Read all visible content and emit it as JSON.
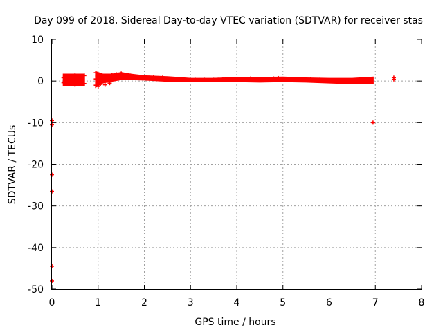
{
  "chart_data": {
    "type": "scatter",
    "title": "Day 099 of 2018, Sidereal Day-to-day VTEC variation (SDTVAR) for receiver stas",
    "xlabel": "GPS time / hours",
    "ylabel": "SDTVAR / TECUs",
    "xlim": [
      0,
      8
    ],
    "ylim": [
      -50,
      10
    ],
    "x_ticks": [
      "0",
      "1",
      "2",
      "3",
      "4",
      "5",
      "6",
      "7",
      "8"
    ],
    "y_ticks": [
      "10",
      "0",
      "-10",
      "-20",
      "-30",
      "-40",
      "-50"
    ],
    "grid": true,
    "marker_color": "#ff0000",
    "series": [
      {
        "name": "SDTVAR",
        "points": [
          [
            0.0,
            -9.5
          ],
          [
            0.0,
            -10.5
          ],
          [
            0.0,
            -22.5
          ],
          [
            0.0,
            -26.5
          ],
          [
            0.0,
            -44.5
          ],
          [
            0.0,
            -48.0
          ],
          [
            0.25,
            0.8
          ],
          [
            0.25,
            -0.4
          ],
          [
            0.3,
            1.0
          ],
          [
            0.3,
            -0.6
          ],
          [
            0.35,
            0.5
          ],
          [
            0.35,
            -0.3
          ],
          [
            0.4,
            1.2
          ],
          [
            0.4,
            -0.8
          ],
          [
            0.45,
            0.6
          ],
          [
            0.45,
            -0.2
          ],
          [
            0.5,
            1.4
          ],
          [
            0.5,
            -0.9
          ],
          [
            0.55,
            0.7
          ],
          [
            0.55,
            -0.5
          ],
          [
            0.6,
            1.1
          ],
          [
            0.6,
            -0.7
          ],
          [
            0.65,
            0.9
          ],
          [
            0.65,
            -0.4
          ],
          [
            0.7,
            1.3
          ],
          [
            0.7,
            -0.6
          ],
          [
            0.95,
            2.0
          ],
          [
            0.95,
            0.5
          ],
          [
            0.95,
            -1.0
          ],
          [
            0.98,
            1.2
          ],
          [
            1.0,
            -1.3
          ],
          [
            1.05,
            1.5
          ],
          [
            1.05,
            -0.8
          ],
          [
            1.1,
            1.0
          ],
          [
            1.15,
            -0.9
          ],
          [
            1.2,
            1.2
          ],
          [
            1.25,
            -0.5
          ],
          [
            1.3,
            1.4
          ],
          [
            1.4,
            1.6
          ],
          [
            1.5,
            1.8
          ],
          [
            1.6,
            1.5
          ],
          [
            1.7,
            1.3
          ],
          [
            1.8,
            1.1
          ],
          [
            1.9,
            1.0
          ],
          [
            2.0,
            0.9
          ],
          [
            2.1,
            0.8
          ],
          [
            2.2,
            1.0
          ],
          [
            2.3,
            0.7
          ],
          [
            2.4,
            0.9
          ],
          [
            2.5,
            0.6
          ],
          [
            2.6,
            0.5
          ],
          [
            2.7,
            0.5
          ],
          [
            2.8,
            0.4
          ],
          [
            2.9,
            0.3
          ],
          [
            3.0,
            0.2
          ],
          [
            3.1,
            0.3
          ],
          [
            3.2,
            0.2
          ],
          [
            3.3,
            0.3
          ],
          [
            3.4,
            0.2
          ],
          [
            3.5,
            0.3
          ],
          [
            3.6,
            0.3
          ],
          [
            3.7,
            0.4
          ],
          [
            3.8,
            0.3
          ],
          [
            3.9,
            0.4
          ],
          [
            4.0,
            0.3
          ],
          [
            4.1,
            0.5
          ],
          [
            4.2,
            0.4
          ],
          [
            4.3,
            0.6
          ],
          [
            4.4,
            0.4
          ],
          [
            4.5,
            0.3
          ],
          [
            4.6,
            0.5
          ],
          [
            4.7,
            0.4
          ],
          [
            4.8,
            0.6
          ],
          [
            4.9,
            0.7
          ],
          [
            5.0,
            0.5
          ],
          [
            5.1,
            0.4
          ],
          [
            5.2,
            0.3
          ],
          [
            5.3,
            0.5
          ],
          [
            5.4,
            0.4
          ],
          [
            5.5,
            0.3
          ],
          [
            5.6,
            0.4
          ],
          [
            5.7,
            0.2
          ],
          [
            5.8,
            0.3
          ],
          [
            5.9,
            0.1
          ],
          [
            6.0,
            0.2
          ],
          [
            6.1,
            0.0
          ],
          [
            6.2,
            0.1
          ],
          [
            6.3,
            -0.1
          ],
          [
            6.4,
            0.0
          ],
          [
            6.5,
            -0.2
          ],
          [
            6.6,
            0.1
          ],
          [
            6.7,
            -0.1
          ],
          [
            6.8,
            0.2
          ],
          [
            6.9,
            0.3
          ],
          [
            6.95,
            -10.0
          ],
          [
            7.4,
            0.8
          ],
          [
            7.4,
            0.4
          ]
        ],
        "band": {
          "x": [
            0.25,
            0.7,
            0.95,
            1.1,
            1.3,
            1.5,
            1.7,
            2.0,
            2.5,
            3.0,
            3.5,
            4.0,
            4.5,
            5.0,
            5.5,
            6.0,
            6.5,
            6.95
          ],
          "y_high": [
            1.6,
            1.6,
            2.2,
            1.6,
            1.6,
            2.0,
            1.6,
            1.2,
            1.0,
            0.6,
            0.6,
            0.8,
            0.8,
            0.9,
            0.7,
            0.6,
            0.6,
            0.9
          ],
          "y_low": [
            -1.0,
            -1.0,
            -1.4,
            -0.4,
            0.0,
            0.4,
            0.4,
            0.3,
            0.0,
            0.0,
            0.0,
            -0.1,
            -0.2,
            -0.1,
            -0.2,
            -0.4,
            -0.6,
            -0.6
          ]
        }
      }
    ]
  }
}
